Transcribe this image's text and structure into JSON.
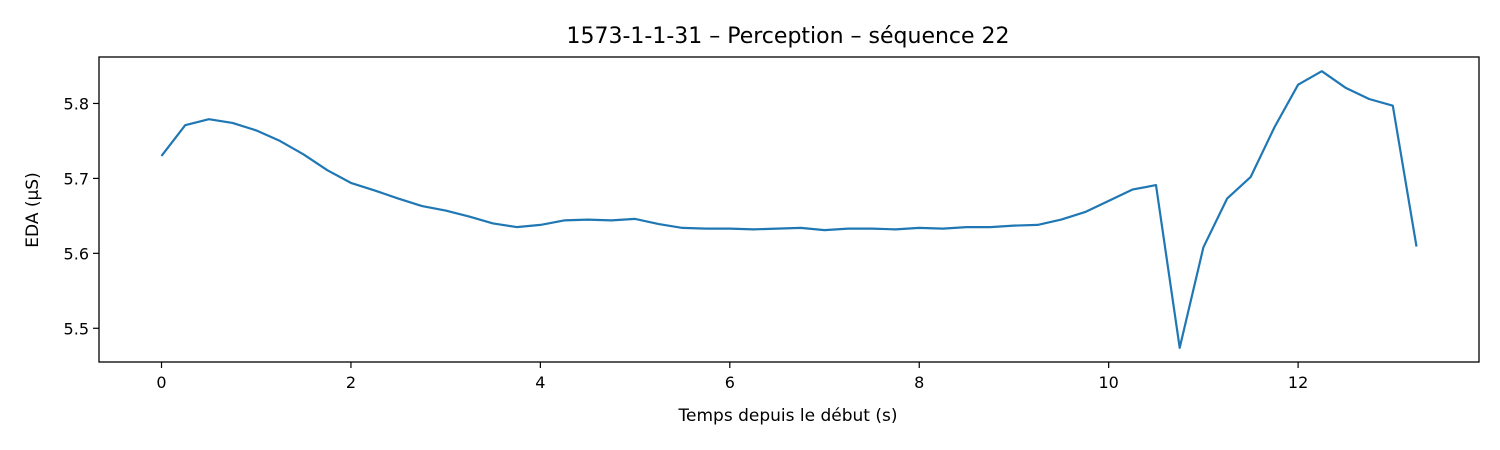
{
  "chart_data": {
    "type": "line",
    "title": "1573-1-1-31 – Perception – séquence 22",
    "xlabel": "Temps depuis le début (s)",
    "ylabel": "EDA (µS)",
    "xlim": [
      -0.66,
      13.91
    ],
    "ylim": [
      5.455,
      5.862
    ],
    "xticks": [
      0,
      2,
      4,
      6,
      8,
      10,
      12
    ],
    "yticks": [
      5.5,
      5.6,
      5.7,
      5.8
    ],
    "grid": false,
    "series": [
      {
        "color": "#1f77b4",
        "x": [
          0,
          0.25,
          0.5,
          0.75,
          1.0,
          1.25,
          1.5,
          1.75,
          2.0,
          2.25,
          2.5,
          2.75,
          3.0,
          3.25,
          3.5,
          3.75,
          4.0,
          4.25,
          4.5,
          4.75,
          5.0,
          5.25,
          5.5,
          5.75,
          6.0,
          6.25,
          6.5,
          6.75,
          7.0,
          7.25,
          7.5,
          7.75,
          8.0,
          8.25,
          8.5,
          8.75,
          9.0,
          9.25,
          9.5,
          9.75,
          10.0,
          10.25,
          10.5,
          10.75,
          11.0,
          11.25,
          11.5,
          11.75,
          12.0,
          12.25,
          12.5,
          12.75,
          13.0,
          13.25
        ],
        "y": [
          5.73,
          5.771,
          5.779,
          5.774,
          5.764,
          5.75,
          5.732,
          5.711,
          5.694,
          5.684,
          5.673,
          5.663,
          5.657,
          5.649,
          5.64,
          5.635,
          5.638,
          5.644,
          5.645,
          5.644,
          5.646,
          5.639,
          5.634,
          5.633,
          5.633,
          5.632,
          5.633,
          5.634,
          5.631,
          5.633,
          5.633,
          5.632,
          5.634,
          5.633,
          5.635,
          5.635,
          5.637,
          5.638,
          5.645,
          5.655,
          5.67,
          5.685,
          5.691,
          5.474,
          5.608,
          5.673,
          5.702,
          5.768,
          5.825,
          5.843,
          5.821,
          5.806,
          5.797,
          5.609
        ]
      }
    ]
  }
}
